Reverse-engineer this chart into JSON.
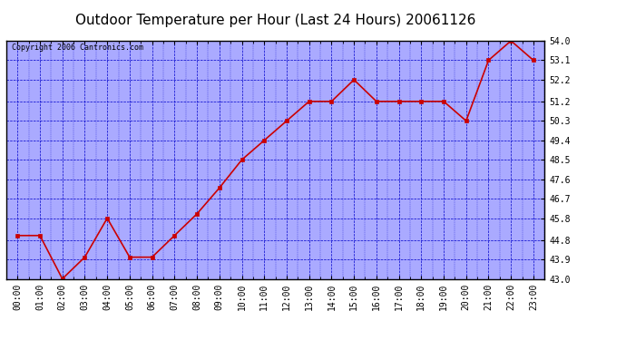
{
  "title": "Outdoor Temperature per Hour (Last 24 Hours) 20061126",
  "copyright_text": "Copyright 2006 Cantronics.com",
  "hours": [
    "00:00",
    "01:00",
    "02:00",
    "03:00",
    "04:00",
    "05:00",
    "06:00",
    "07:00",
    "08:00",
    "09:00",
    "10:00",
    "11:00",
    "12:00",
    "13:00",
    "14:00",
    "15:00",
    "16:00",
    "17:00",
    "18:00",
    "19:00",
    "20:00",
    "21:00",
    "22:00",
    "23:00"
  ],
  "temperatures": [
    45.0,
    45.0,
    43.0,
    44.0,
    45.8,
    44.0,
    44.0,
    45.0,
    46.0,
    47.2,
    48.5,
    49.4,
    50.3,
    51.2,
    51.2,
    52.2,
    51.2,
    51.2,
    51.2,
    51.2,
    50.3,
    53.1,
    54.0,
    53.1
  ],
  "line_color": "#cc0000",
  "marker_color": "#cc0000",
  "bg_color": "#aaaaff",
  "plot_bg_color": "#ffffff",
  "grid_color": "#0000cc",
  "axis_color": "#000000",
  "ylim_min": 43.0,
  "ylim_max": 54.0,
  "yticks": [
    43.0,
    43.9,
    44.8,
    45.8,
    46.7,
    47.6,
    48.5,
    49.4,
    50.3,
    51.2,
    52.2,
    53.1,
    54.0
  ],
  "title_fontsize": 11,
  "copyright_fontsize": 6,
  "tick_fontsize": 7
}
